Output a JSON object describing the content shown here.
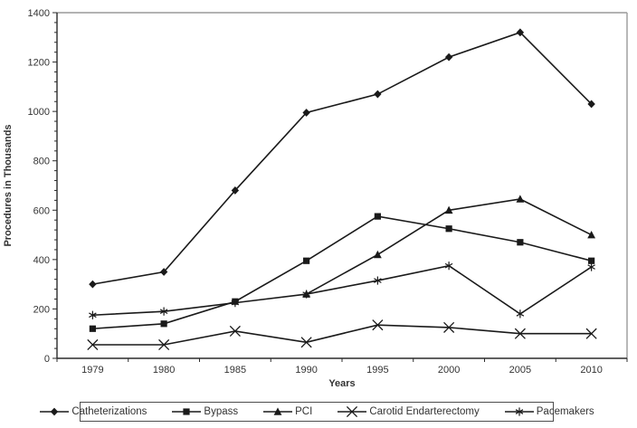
{
  "chart_data": {
    "type": "line",
    "title": "",
    "xlabel": "Years",
    "ylabel": "Procedures in Thousands",
    "categories": [
      "1979",
      "1980",
      "1985",
      "1990",
      "1995",
      "2000",
      "2005",
      "2010"
    ],
    "series": [
      {
        "name": "Catheterizations",
        "marker": "diamond",
        "values": [
          300,
          350,
          680,
          995,
          1070,
          1220,
          1320,
          1030
        ]
      },
      {
        "name": "Bypass",
        "marker": "square",
        "values": [
          120,
          140,
          230,
          395,
          575,
          525,
          470,
          395
        ]
      },
      {
        "name": "PCI",
        "marker": "triangle",
        "values": [
          null,
          null,
          null,
          260,
          420,
          600,
          645,
          500
        ]
      },
      {
        "name": "Carotid Endarterectomy",
        "marker": "x",
        "values": [
          55,
          55,
          110,
          65,
          135,
          125,
          100,
          100
        ]
      },
      {
        "name": "Pacemakers",
        "marker": "star",
        "values": [
          175,
          190,
          225,
          260,
          315,
          375,
          180,
          370
        ]
      }
    ],
    "ylim": [
      0,
      1400
    ],
    "ytick_step": 200,
    "yminor_step": 40,
    "grid": false,
    "legend_position": "bottom",
    "colors": {
      "series_color": "#1a1a1a",
      "axis_color": "#2b2b2b",
      "frame_color": "#9a9a9a",
      "text_color": "#333333"
    }
  }
}
